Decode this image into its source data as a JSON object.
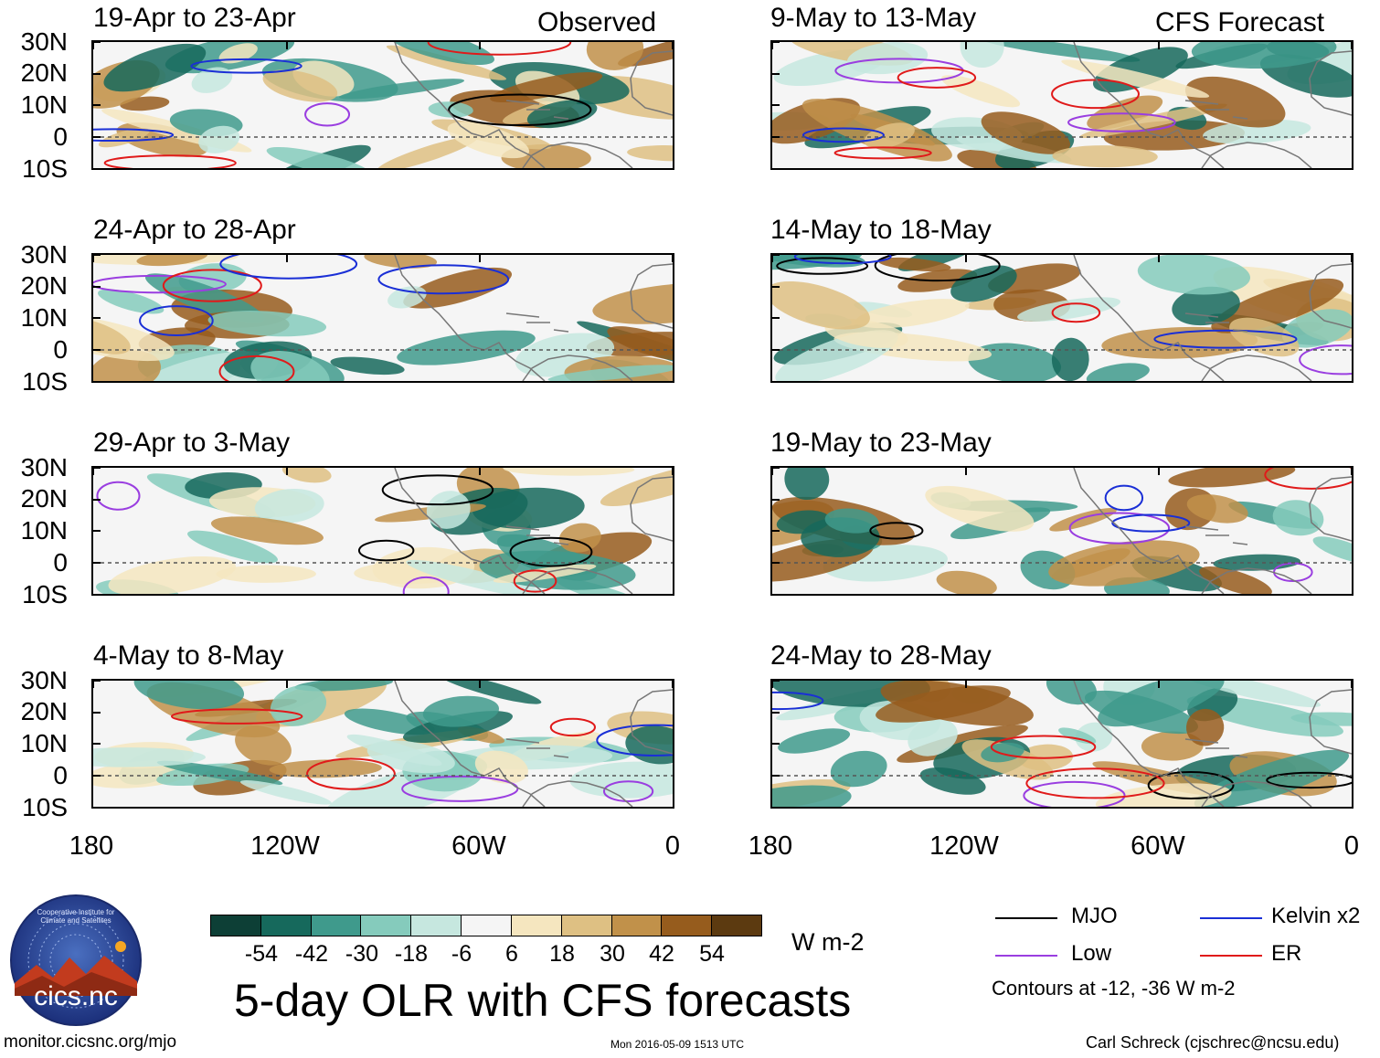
{
  "headers": {
    "left": "Observed",
    "right": "CFS Forecast"
  },
  "panels_left": [
    {
      "title": "19-Apr to 23-Apr"
    },
    {
      "title": "24-Apr to 28-Apr"
    },
    {
      "title": "29-Apr to 3-May"
    },
    {
      "title": "4-May to 8-May"
    }
  ],
  "panels_right": [
    {
      "title": "9-May to 13-May"
    },
    {
      "title": "14-May to 18-May"
    },
    {
      "title": "19-May to 23-May"
    },
    {
      "title": "24-May to 28-May"
    }
  ],
  "lat_labels": [
    "30N",
    "20N",
    "10N",
    "0",
    "10S"
  ],
  "lon_labels": [
    "180",
    "120W",
    "60W",
    "0"
  ],
  "colorbar": {
    "colors": [
      "#0d3f36",
      "#16695c",
      "#3f9a8c",
      "#85cbbc",
      "#c6e7df",
      "#f5f5f5",
      "#f5e6bf",
      "#dec083",
      "#c1914a",
      "#965c1d",
      "#5c3a10"
    ],
    "labels": [
      "-54",
      "-42",
      "-30",
      "-18",
      "-6",
      "6",
      "18",
      "30",
      "42",
      "54"
    ],
    "units": "W m-2"
  },
  "legend": {
    "items": [
      {
        "label": "MJO",
        "color": "#000000"
      },
      {
        "label": "Kelvin x2",
        "color": "#1a2fd6"
      },
      {
        "label": "Low",
        "color": "#9a3ee0"
      },
      {
        "label": "ER",
        "color": "#e01a1a"
      }
    ],
    "note": "Contours at -12, -36 W m-2"
  },
  "logo": {
    "text": "cics.nc",
    "ring": "Cooperative Institute for Climate and Satellites"
  },
  "main_title": "5-day OLR with CFS forecasts",
  "footer": {
    "left": "monitor.cicsnc.org/mjo",
    "center": "Mon 2016-05-09 1513 UTC",
    "right": "Carl Schreck (cjschrec@ncsu.edu)"
  },
  "colors": {
    "land": "#777777",
    "equator": "#555555"
  }
}
